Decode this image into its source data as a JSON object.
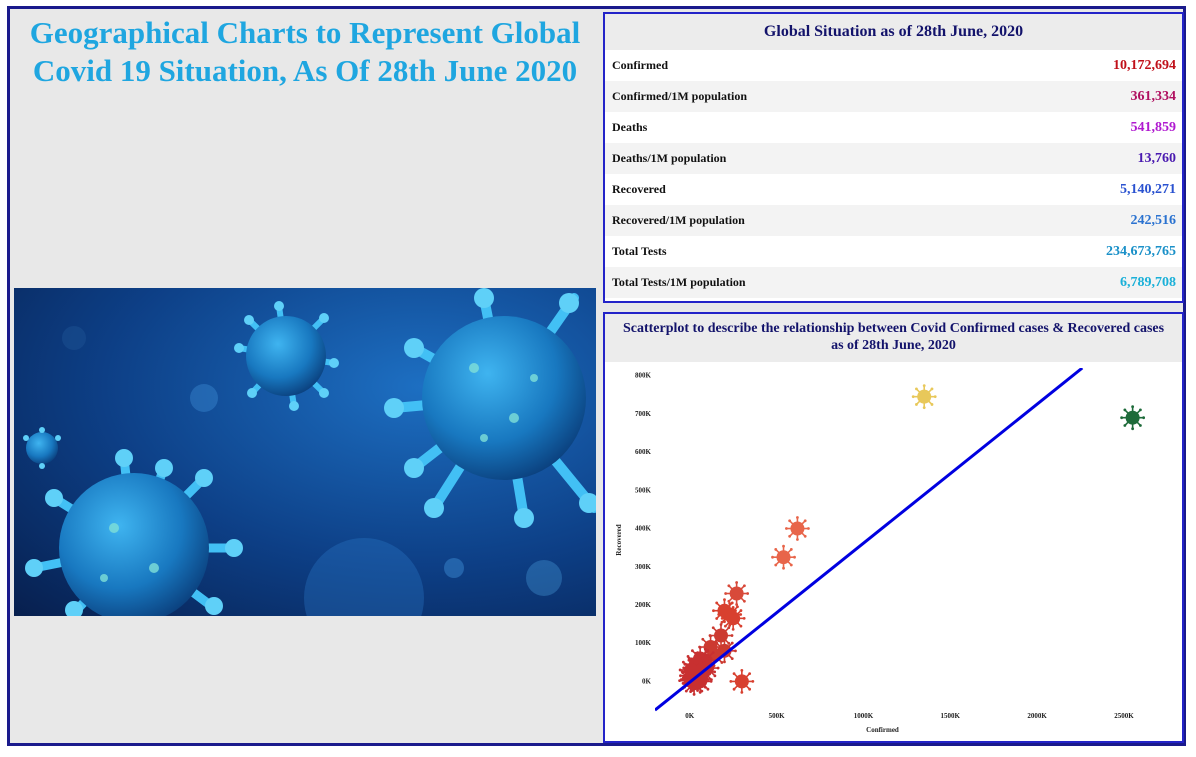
{
  "page": {
    "title": "Geographical Charts to Represent Global Covid 19 Situation, As Of 28th June 2020"
  },
  "stats": {
    "heading": "Global Situation as of 28th June, 2020",
    "rows": [
      {
        "label": "Confirmed",
        "value": "10,172,694",
        "color": "#c0101a"
      },
      {
        "label": "Confirmed/1M population",
        "value": "361,334",
        "color": "#b01060"
      },
      {
        "label": "Deaths",
        "value": "541,859",
        "color": "#b01ad0"
      },
      {
        "label": "Deaths/1M population",
        "value": "13,760",
        "color": "#4a1ab0"
      },
      {
        "label": "Recovered",
        "value": "5,140,271",
        "color": "#2a52d0"
      },
      {
        "label": "Recovered/1M population",
        "value": "242,516",
        "color": "#2a72d0"
      },
      {
        "label": "Total Tests",
        "value": "234,673,765",
        "color": "#1a90c8"
      },
      {
        "label": "Total Tests/1M population",
        "value": "6,789,708",
        "color": "#1ab0d8"
      }
    ]
  },
  "scatter": {
    "heading": "Scatterplot to describe the relationship between Covid Confirmed cases & Recovered cases as of 28th June, 2020"
  },
  "chart_data": {
    "type": "scatter",
    "title": "Scatterplot to describe the relationship between Covid Confirmed cases & Recovered cases as of 28th June, 2020",
    "xlabel": "Confirmed",
    "ylabel": "Recovered",
    "x_ticks": [
      "0K",
      "500K",
      "1000K",
      "1500K",
      "2000K",
      "2500K"
    ],
    "y_ticks": [
      "0K",
      "100K",
      "200K",
      "300K",
      "400K",
      "500K",
      "600K",
      "700K",
      "800K"
    ],
    "xlim": [
      -200000,
      2650000
    ],
    "ylim": [
      -80000,
      820000
    ],
    "grid": false,
    "point_color": "#c62828",
    "line_color": "#0000e0",
    "trendline": [
      [
        -200000,
        -75000
      ],
      [
        2260000,
        820000
      ]
    ],
    "points": [
      {
        "x": 1350000,
        "y": 745000,
        "color": "#e8c85a"
      },
      {
        "x": 2550000,
        "y": 690000,
        "color": "#1e6b3a"
      },
      {
        "x": 620000,
        "y": 400000,
        "color": "#e8654a"
      },
      {
        "x": 540000,
        "y": 325000,
        "color": "#e8654a"
      },
      {
        "x": 270000,
        "y": 230000,
        "color": "#d84a3a"
      },
      {
        "x": 230000,
        "y": 175000,
        "color": "#d8402f"
      },
      {
        "x": 200000,
        "y": 185000,
        "color": "#d8402f"
      },
      {
        "x": 250000,
        "y": 165000,
        "color": "#d8402f"
      },
      {
        "x": 180000,
        "y": 120000,
        "color": "#cc3a30"
      },
      {
        "x": 300000,
        "y": 0,
        "color": "#d8402f"
      },
      {
        "x": 200000,
        "y": 80000,
        "color": "#cc3a30"
      },
      {
        "x": 140000,
        "y": 70000,
        "color": "#cc3a30"
      },
      {
        "x": 120000,
        "y": 90000,
        "color": "#cc3a30"
      },
      {
        "x": 90000,
        "y": 55000,
        "color": "#c83030"
      },
      {
        "x": 70000,
        "y": 40000,
        "color": "#c83030"
      },
      {
        "x": 60000,
        "y": 60000,
        "color": "#c83030"
      },
      {
        "x": 50000,
        "y": 20000,
        "color": "#c83030"
      },
      {
        "x": 40000,
        "y": 35000,
        "color": "#c83030"
      },
      {
        "x": 30000,
        "y": 10000,
        "color": "#c83030"
      },
      {
        "x": 20000,
        "y": 25000,
        "color": "#c83030"
      },
      {
        "x": 15000,
        "y": 5000,
        "color": "#c83030"
      },
      {
        "x": 10000,
        "y": 15000,
        "color": "#c83030"
      },
      {
        "x": 5000,
        "y": 2000,
        "color": "#c83030"
      },
      {
        "x": 25000,
        "y": -5000,
        "color": "#c83030"
      },
      {
        "x": 45000,
        "y": 5000,
        "color": "#c83030"
      },
      {
        "x": 80000,
        "y": 25000,
        "color": "#c83030"
      },
      {
        "x": 100000,
        "y": 35000,
        "color": "#c83030"
      },
      {
        "x": 35000,
        "y": 45000,
        "color": "#c83030"
      },
      {
        "x": 8000,
        "y": 30000,
        "color": "#c83030"
      },
      {
        "x": 60000,
        "y": 0,
        "color": "#c83030"
      }
    ]
  }
}
